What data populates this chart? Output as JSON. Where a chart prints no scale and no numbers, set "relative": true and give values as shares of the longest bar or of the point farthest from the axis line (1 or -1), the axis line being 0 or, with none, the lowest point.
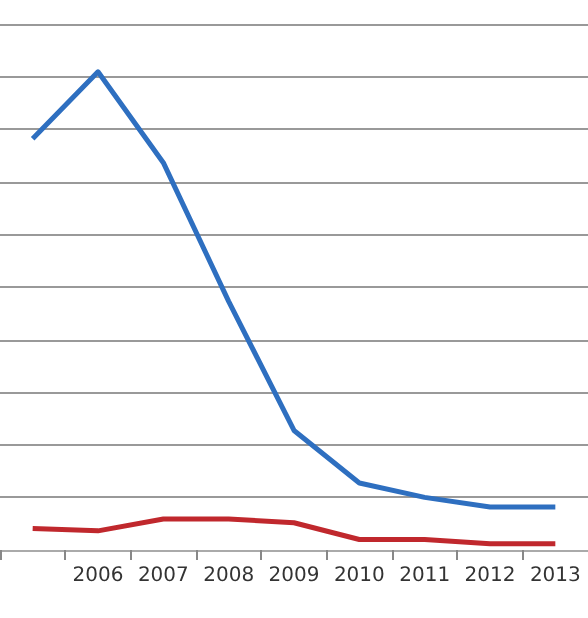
{
  "chart_data": {
    "type": "line",
    "relative": true,
    "grid": "y",
    "marker": "none",
    "line_style": "solid",
    "categories": [
      null,
      "2006",
      "2007",
      "2008",
      "2009",
      "2010",
      "2011",
      "2012",
      "2013"
    ],
    "series": [
      {
        "color": "#2e6fc0",
        "values": [
          0.86,
          1,
          0.81,
          0.52,
          0.25,
          0.14,
          0.11,
          0.09,
          0.09
        ]
      },
      {
        "color": "#c0282d",
        "values": [
          0.045,
          0.04,
          0.065,
          0.065,
          0.057,
          0.022,
          0.022,
          0.013,
          0.013
        ]
      }
    ]
  }
}
